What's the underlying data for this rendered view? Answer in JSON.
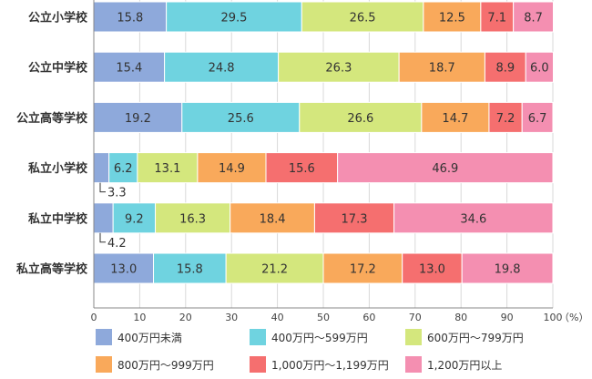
{
  "chart_data": {
    "type": "bar",
    "orientation": "horizontal",
    "stacked": true,
    "categories": [
      "公立小学校",
      "公立中学校",
      "公立高等学校",
      "私立小学校",
      "私立中学校",
      "私立高等学校"
    ],
    "series": [
      {
        "name": "400万円未満",
        "color": "#8ea9db",
        "values": [
          15.8,
          15.4,
          19.2,
          3.3,
          4.2,
          13.0
        ]
      },
      {
        "name": "400万円～599万円",
        "color": "#6fd3e0",
        "values": [
          29.5,
          24.8,
          25.6,
          6.2,
          9.2,
          15.8
        ]
      },
      {
        "name": "600万円～799万円",
        "color": "#d4e77d",
        "values": [
          26.5,
          26.3,
          26.6,
          13.1,
          16.3,
          21.2
        ]
      },
      {
        "name": "800万円～999万円",
        "color": "#f9a95b",
        "values": [
          12.5,
          18.7,
          14.7,
          14.9,
          18.4,
          17.2
        ]
      },
      {
        "name": "1,000万円～1,199万円",
        "color": "#f56f6f",
        "values": [
          7.1,
          8.9,
          7.2,
          15.6,
          17.3,
          13.0
        ]
      },
      {
        "name": "1,200万円以上",
        "color": "#f48fb1",
        "values": [
          8.7,
          6.0,
          6.7,
          46.9,
          34.6,
          19.8
        ]
      }
    ],
    "value_labels": [
      [
        "15.8",
        "29.5",
        "26.5",
        "12.5",
        "7.1",
        "8.7"
      ],
      [
        "15.4",
        "24.8",
        "26.3",
        "18.7",
        "8.9",
        "6.0"
      ],
      [
        "19.2",
        "25.6",
        "26.6",
        "14.7",
        "7.2",
        "6.7"
      ],
      [
        "3.3",
        "6.2",
        "13.1",
        "14.9",
        "15.6",
        "46.9"
      ],
      [
        "4.2",
        "9.2",
        "16.3",
        "18.4",
        "17.3",
        "34.6"
      ],
      [
        "13.0",
        "15.8",
        "21.2",
        "17.2",
        "13.0",
        "19.8"
      ]
    ],
    "outside_label_series_index": 0,
    "outside_label_categories": [
      3,
      4
    ],
    "xlim": [
      0,
      100
    ],
    "xticks": [
      0,
      10,
      20,
      30,
      40,
      50,
      60,
      70,
      80,
      90,
      100
    ],
    "xlabel": "（%）",
    "grid": true,
    "legend_position": "bottom"
  }
}
